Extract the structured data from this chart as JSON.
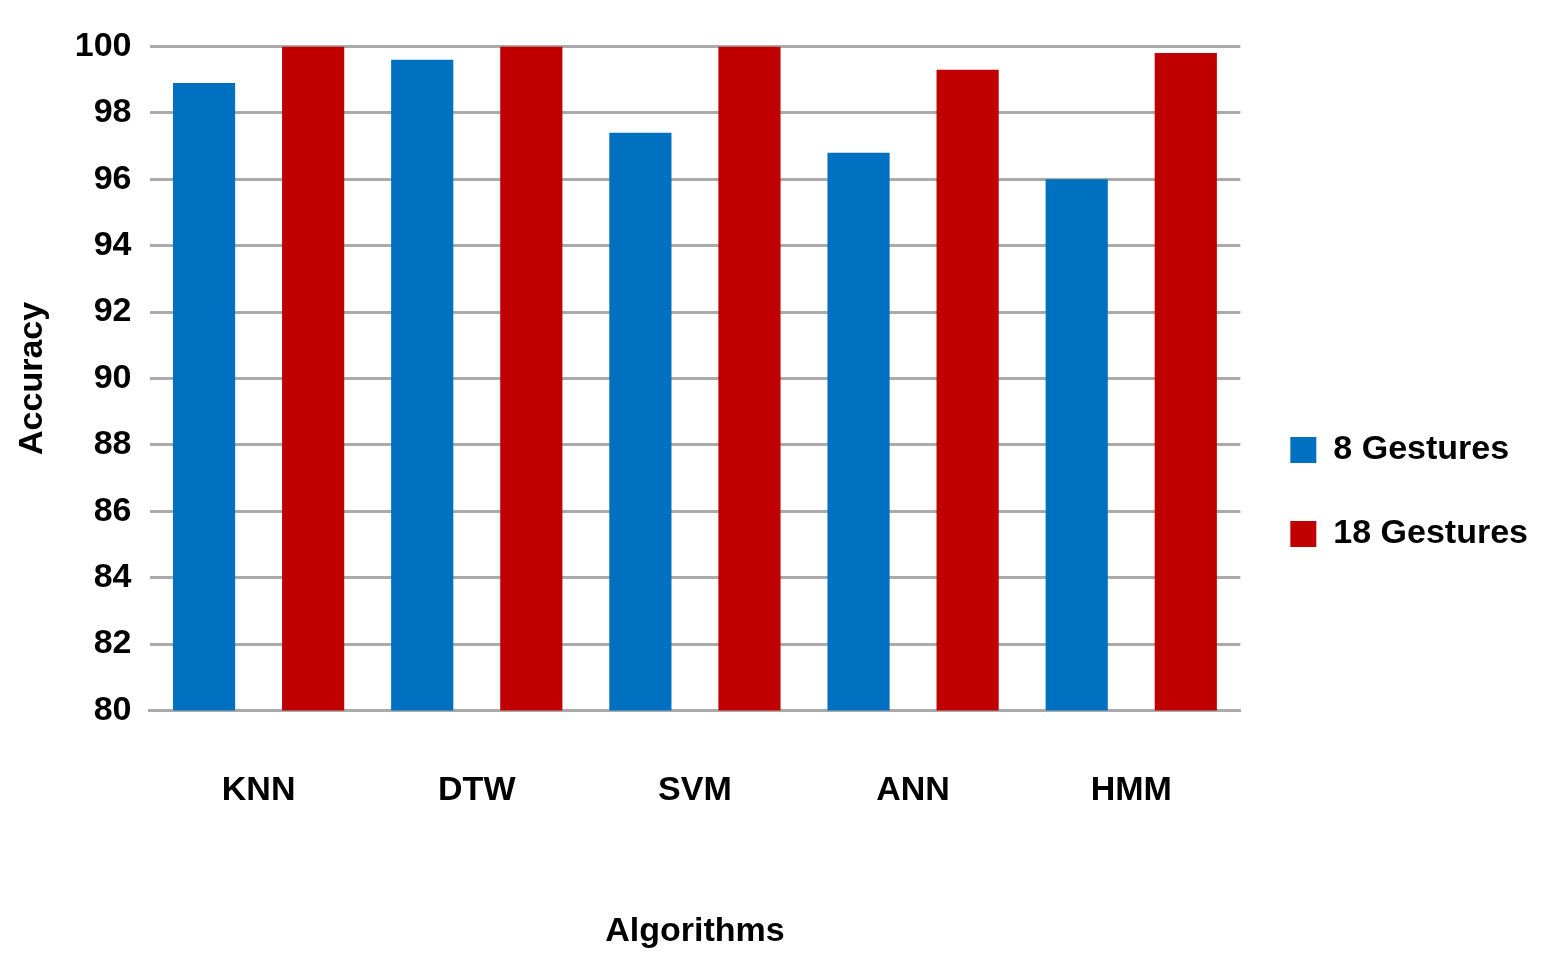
{
  "chart_data": {
    "type": "bar",
    "xlabel": "Algorithms",
    "ylabel": "Accuracy",
    "categories": [
      "KNN",
      "DTW",
      "SVM",
      "ANN",
      "HMM"
    ],
    "series": [
      {
        "name": "8 Gestures",
        "color": "#0070c0",
        "values": [
          98.9,
          99.6,
          97.4,
          96.8,
          96.0
        ]
      },
      {
        "name": "18 Gestures",
        "color": "#c00000",
        "values": [
          100,
          100,
          100,
          99.3,
          99.8
        ]
      }
    ],
    "ylim": [
      80,
      100
    ],
    "yticks": [
      80,
      82,
      84,
      86,
      88,
      90,
      92,
      94,
      96,
      98,
      100
    ],
    "grid": "y",
    "legend": "right"
  }
}
